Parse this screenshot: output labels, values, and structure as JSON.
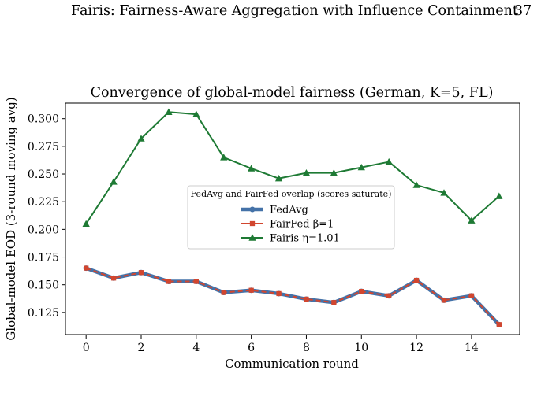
{
  "header": {
    "running_title": "Fairis: Fairness-Aware Aggregation with Influence Containment",
    "page_number": "37"
  },
  "chart_data": {
    "type": "line",
    "title": "Convergence of global-model fairness (German, K=5, FL)",
    "xlabel": "Communication round",
    "ylabel": "Global-model EOD (3-round moving avg)",
    "x": [
      0,
      1,
      2,
      3,
      4,
      5,
      6,
      7,
      8,
      9,
      10,
      11,
      12,
      13,
      14,
      15
    ],
    "xlim": [
      -0.75,
      15.75
    ],
    "ylim": [
      0.105,
      0.314
    ],
    "xticks": [
      0,
      2,
      4,
      6,
      8,
      10,
      12,
      14
    ],
    "yticks": [
      0.125,
      0.15,
      0.175,
      0.2,
      0.225,
      0.25,
      0.275,
      0.3
    ],
    "ytick_labels": [
      "0.125",
      "0.150",
      "0.175",
      "0.200",
      "0.225",
      "0.250",
      "0.275",
      "0.300"
    ],
    "grid": false,
    "legend": {
      "title": "FedAvg and FairFed overlap (scores saturate)",
      "placement": "center"
    },
    "series": [
      {
        "name": "FedAvg",
        "color": "#4472a8",
        "marker": "circle",
        "values": [
          0.165,
          0.156,
          0.161,
          0.153,
          0.153,
          0.143,
          0.145,
          0.142,
          0.137,
          0.134,
          0.144,
          0.14,
          0.154,
          0.136,
          0.14,
          0.114
        ]
      },
      {
        "name": "FairFed β=1",
        "color": "#d1462f",
        "marker": "square",
        "values": [
          0.165,
          0.156,
          0.161,
          0.153,
          0.153,
          0.143,
          0.145,
          0.142,
          0.137,
          0.134,
          0.144,
          0.14,
          0.154,
          0.136,
          0.14,
          0.114
        ]
      },
      {
        "name": "Fairis η=1.01",
        "color": "#1e7a34",
        "marker": "triangle",
        "values": [
          0.205,
          0.243,
          0.282,
          0.306,
          0.304,
          0.265,
          0.255,
          0.246,
          0.251,
          0.251,
          0.256,
          0.261,
          0.24,
          0.233,
          0.208,
          0.23
        ]
      }
    ]
  }
}
